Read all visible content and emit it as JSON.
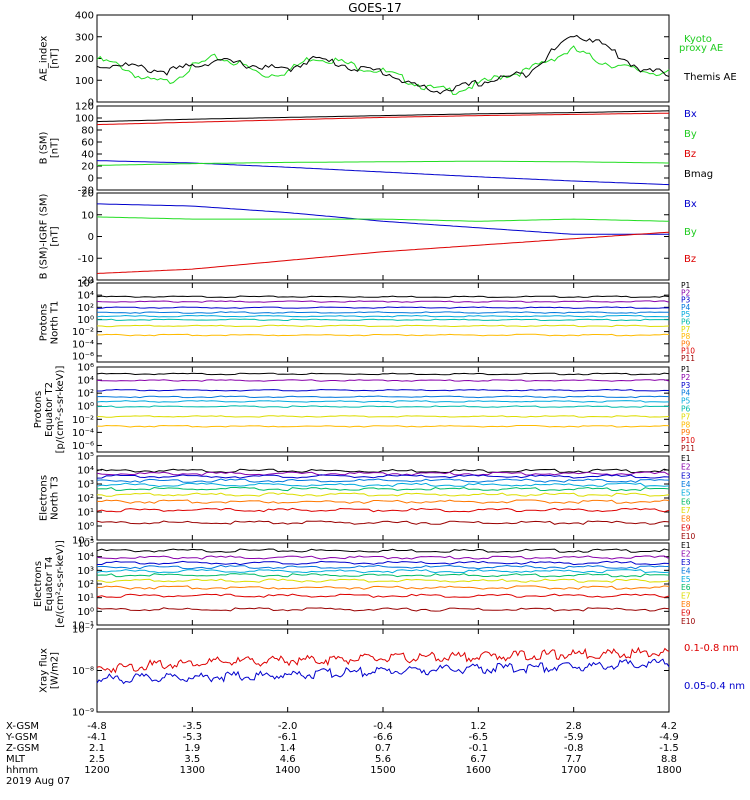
{
  "title": "GOES-17",
  "chart_data": [
    {
      "type": "line",
      "ylabel": [
        "AE_index",
        "[nT]"
      ],
      "ylim": [
        0,
        400
      ],
      "ticks": [
        "0",
        "100",
        "200",
        "300",
        "400"
      ],
      "legend": [
        {
          "label": "Kyoto",
          "color": "#22cc22"
        },
        {
          "label": "proxy AE",
          "color": "#22cc22"
        },
        {
          "label": "Themis AE",
          "color": "#000000"
        }
      ],
      "series": [
        {
          "name": "Kyoto proxy AE",
          "color": "#22dd22",
          "x": [
            0,
            15,
            30,
            45,
            60,
            75,
            90,
            105,
            120,
            135,
            150,
            165,
            180,
            195,
            210,
            225,
            240,
            255,
            270,
            285,
            300,
            315,
            330,
            345,
            360
          ],
          "values": [
            205,
            175,
            110,
            100,
            170,
            215,
            185,
            130,
            150,
            215,
            200,
            170,
            150,
            110,
            70,
            60,
            90,
            130,
            150,
            205,
            250,
            200,
            170,
            150,
            140
          ]
        },
        {
          "name": "Themis AE",
          "color": "#000000",
          "x": [
            0,
            15,
            30,
            45,
            60,
            75,
            90,
            105,
            120,
            135,
            150,
            165,
            180,
            195,
            210,
            225,
            240,
            255,
            270,
            285,
            300,
            315,
            330,
            345,
            360
          ],
          "values": [
            170,
            185,
            160,
            150,
            175,
            200,
            185,
            170,
            155,
            210,
            190,
            160,
            150,
            100,
            60,
            70,
            95,
            120,
            140,
            230,
            320,
            290,
            215,
            150,
            140
          ]
        }
      ]
    },
    {
      "type": "line",
      "ylabel": [
        "B (SM)",
        "[nT]"
      ],
      "ylim": [
        -20,
        120
      ],
      "ticks": [
        "-20",
        "0",
        "20",
        "40",
        "60",
        "80",
        "100",
        "120"
      ],
      "legend": [
        {
          "label": "Bx",
          "color": "#0000cc"
        },
        {
          "label": "By",
          "color": "#22cc22"
        },
        {
          "label": "Bz",
          "color": "#dd0000"
        },
        {
          "label": "Bmag",
          "color": "#000000"
        }
      ],
      "series": [
        {
          "name": "Bx",
          "color": "#0000cc",
          "x": [
            0,
            60,
            120,
            180,
            240,
            300,
            360
          ],
          "values": [
            29,
            25,
            18,
            10,
            2,
            -5,
            -11
          ]
        },
        {
          "name": "By",
          "color": "#22dd22",
          "x": [
            0,
            60,
            120,
            180,
            240,
            300,
            360
          ],
          "values": [
            21,
            24,
            26,
            27,
            28,
            27,
            25
          ]
        },
        {
          "name": "Bz",
          "color": "#dd0000",
          "x": [
            0,
            60,
            120,
            180,
            240,
            300,
            360
          ],
          "values": [
            89,
            93,
            97,
            101,
            104,
            106,
            108
          ]
        },
        {
          "name": "Bmag",
          "color": "#000000",
          "x": [
            0,
            60,
            120,
            180,
            240,
            300,
            360
          ],
          "values": [
            94,
            98,
            101,
            104,
            107,
            109,
            112
          ]
        }
      ]
    },
    {
      "type": "line",
      "ylabel": [
        "B (SM)-IGRF (SM)",
        "[nT]"
      ],
      "ylim": [
        -20,
        20
      ],
      "ticks": [
        "-20",
        "-10",
        "0",
        "10",
        "20"
      ],
      "legend": [
        {
          "label": "Bx",
          "color": "#0000cc"
        },
        {
          "label": "By",
          "color": "#22cc22"
        },
        {
          "label": "Bz",
          "color": "#dd0000"
        }
      ],
      "series": [
        {
          "name": "Bx",
          "color": "#0000cc",
          "x": [
            0,
            60,
            120,
            180,
            240,
            300,
            360
          ],
          "values": [
            15,
            14,
            11,
            7,
            4,
            1,
            1
          ]
        },
        {
          "name": "By",
          "color": "#22dd22",
          "x": [
            0,
            60,
            120,
            180,
            240,
            300,
            360
          ],
          "values": [
            9,
            8,
            8,
            8,
            7,
            8,
            7
          ]
        },
        {
          "name": "Bz",
          "color": "#dd0000",
          "x": [
            0,
            60,
            120,
            180,
            240,
            300,
            360
          ],
          "values": [
            -17,
            -15,
            -11,
            -7,
            -4,
            -1,
            2
          ]
        }
      ]
    },
    {
      "type": "line",
      "ylog": true,
      "ylabel": [
        "Protons",
        "North T1"
      ],
      "ylim_exp": [
        -7,
        6
      ],
      "ticks": [
        "10⁶",
        "10⁴",
        "10²",
        "10⁰",
        "10⁻²",
        "10⁻⁴",
        "10⁻⁶"
      ],
      "tick_exp": [
        6,
        4,
        2,
        0,
        -2,
        -4,
        -6
      ],
      "legend": [
        {
          "label": "P1",
          "color": "#000000"
        },
        {
          "label": "P2",
          "color": "#8800aa"
        },
        {
          "label": "P3",
          "color": "#0000cc"
        },
        {
          "label": "P4",
          "color": "#0077dd"
        },
        {
          "label": "P5",
          "color": "#00aadd"
        },
        {
          "label": "P6",
          "color": "#00bbaa"
        },
        {
          "label": "P7",
          "color": "#dddd00"
        },
        {
          "label": "P8",
          "color": "#ffbb00"
        },
        {
          "label": "P9",
          "color": "#ff7700"
        },
        {
          "label": "P10",
          "color": "#dd0000"
        },
        {
          "label": "P11",
          "color": "#990000"
        }
      ],
      "series": [
        {
          "name": "P1",
          "color": "#000000",
          "level_exp": 3.8
        },
        {
          "name": "P2",
          "color": "#8800aa",
          "level_exp": 3.0
        },
        {
          "name": "P3",
          "color": "#0000cc",
          "level_exp": 2.0
        },
        {
          "name": "P4",
          "color": "#0077dd",
          "level_exp": 1.2
        },
        {
          "name": "P5",
          "color": "#00aadd",
          "level_exp": 0.6
        },
        {
          "name": "P6",
          "color": "#00bbaa",
          "level_exp": 0.0
        },
        {
          "name": "P7",
          "color": "#dddd00",
          "level_exp": -1.0
        },
        {
          "name": "P8",
          "color": "#ffbb00",
          "level_exp": -2.5
        }
      ]
    },
    {
      "type": "line",
      "ylog": true,
      "ylabel": [
        "Protons",
        "Equator T2",
        "[p/(cm²-s-sr-keV)]"
      ],
      "ylim_exp": [
        -7,
        6
      ],
      "ticks": [
        "10⁶",
        "10⁴",
        "10²",
        "10⁰",
        "10⁻²",
        "10⁻⁴",
        "10⁻⁶"
      ],
      "tick_exp": [
        6,
        4,
        2,
        0,
        -2,
        -4,
        -6
      ],
      "legend": [
        {
          "label": "P1",
          "color": "#000000"
        },
        {
          "label": "P2",
          "color": "#8800aa"
        },
        {
          "label": "P3",
          "color": "#0000cc"
        },
        {
          "label": "P4",
          "color": "#0077dd"
        },
        {
          "label": "P5",
          "color": "#00aadd"
        },
        {
          "label": "P6",
          "color": "#00bbaa"
        },
        {
          "label": "P7",
          "color": "#dddd00"
        },
        {
          "label": "P8",
          "color": "#ffbb00"
        },
        {
          "label": "P9",
          "color": "#ff7700"
        },
        {
          "label": "P10",
          "color": "#dd0000"
        },
        {
          "label": "P11",
          "color": "#990000"
        }
      ],
      "series": [
        {
          "name": "P1",
          "color": "#000000",
          "level_exp": 5.0
        },
        {
          "name": "P2",
          "color": "#8800aa",
          "level_exp": 4.0
        },
        {
          "name": "P3",
          "color": "#0000cc",
          "level_exp": 2.5
        },
        {
          "name": "P4",
          "color": "#0077dd",
          "level_exp": 1.5
        },
        {
          "name": "P5",
          "color": "#00aadd",
          "level_exp": 0.8
        },
        {
          "name": "P6",
          "color": "#00bbaa",
          "level_exp": 0.0
        },
        {
          "name": "P7",
          "color": "#dddd00",
          "level_exp": -1.5
        },
        {
          "name": "P8",
          "color": "#ffbb00",
          "level_exp": -3.0
        }
      ]
    },
    {
      "type": "line",
      "ylog": true,
      "ylabel": [
        "Electrons",
        "North T3"
      ],
      "ylim_exp": [
        -1,
        5
      ],
      "ticks": [
        "10⁵",
        "10⁴",
        "10³",
        "10²",
        "10¹",
        "10⁰",
        "10⁻¹"
      ],
      "tick_exp": [
        5,
        4,
        3,
        2,
        1,
        0,
        -1
      ],
      "legend": [
        {
          "label": "E1",
          "color": "#000000"
        },
        {
          "label": "E2",
          "color": "#8800aa"
        },
        {
          "label": "E3",
          "color": "#0000cc"
        },
        {
          "label": "E4",
          "color": "#0077dd"
        },
        {
          "label": "E5",
          "color": "#00aadd"
        },
        {
          "label": "E6",
          "color": "#00bb66"
        },
        {
          "label": "E7",
          "color": "#dddd00"
        },
        {
          "label": "E8",
          "color": "#ff7700"
        },
        {
          "label": "E9",
          "color": "#dd0000"
        },
        {
          "label": "E10",
          "color": "#990000"
        }
      ],
      "series": [
        {
          "name": "E1",
          "color": "#000000",
          "level_exp": 4.0
        },
        {
          "name": "E2",
          "color": "#8800aa",
          "level_exp": 3.8
        },
        {
          "name": "E3",
          "color": "#0000cc",
          "level_exp": 3.6
        },
        {
          "name": "E4",
          "color": "#0077dd",
          "level_exp": 3.3
        },
        {
          "name": "E5",
          "color": "#00aadd",
          "level_exp": 3.0
        },
        {
          "name": "E6",
          "color": "#00bb66",
          "level_exp": 2.7
        },
        {
          "name": "E7",
          "color": "#dddd00",
          "level_exp": 2.3
        },
        {
          "name": "E8",
          "color": "#ff7700",
          "level_exp": 1.8
        },
        {
          "name": "E9",
          "color": "#dd0000",
          "level_exp": 1.2
        },
        {
          "name": "E10",
          "color": "#990000",
          "level_exp": 0.3
        }
      ]
    },
    {
      "type": "line",
      "ylog": true,
      "ylabel": [
        "Electrons",
        "Equator T4",
        "[e/(cm²-s-sr-keV)]"
      ],
      "ylim_exp": [
        -1,
        5
      ],
      "ticks": [
        "10⁵",
        "10⁴",
        "10³",
        "10²",
        "10¹",
        "10⁰",
        "10⁻¹"
      ],
      "tick_exp": [
        5,
        4,
        3,
        2,
        1,
        0,
        -1
      ],
      "legend": [
        {
          "label": "E1",
          "color": "#000000"
        },
        {
          "label": "E2",
          "color": "#8800aa"
        },
        {
          "label": "E3",
          "color": "#0000cc"
        },
        {
          "label": "E4",
          "color": "#0077dd"
        },
        {
          "label": "E5",
          "color": "#00aadd"
        },
        {
          "label": "E6",
          "color": "#00bb66"
        },
        {
          "label": "E7",
          "color": "#dddd00"
        },
        {
          "label": "E8",
          "color": "#ff7700"
        },
        {
          "label": "E9",
          "color": "#dd0000"
        },
        {
          "label": "E10",
          "color": "#990000"
        }
      ],
      "series": [
        {
          "name": "E1",
          "color": "#000000",
          "level_exp": 4.5
        },
        {
          "name": "E2",
          "color": "#8800aa",
          "level_exp": 4.0
        },
        {
          "name": "E3",
          "color": "#0000cc",
          "level_exp": 3.6
        },
        {
          "name": "E4",
          "color": "#0077dd",
          "level_exp": 3.3
        },
        {
          "name": "E5",
          "color": "#00aadd",
          "level_exp": 3.0
        },
        {
          "name": "E6",
          "color": "#00bb66",
          "level_exp": 2.7
        },
        {
          "name": "E7",
          "color": "#dddd00",
          "level_exp": 2.3
        },
        {
          "name": "E8",
          "color": "#ff7700",
          "level_exp": 1.8
        },
        {
          "name": "E9",
          "color": "#dd0000",
          "level_exp": 1.2
        },
        {
          "name": "E10",
          "color": "#990000",
          "level_exp": 0.2
        }
      ]
    },
    {
      "type": "line",
      "ylog": true,
      "ylabel": [
        "Xray flux",
        "[W/m2]"
      ],
      "ylim_exp": [
        -9,
        -7
      ],
      "ticks": [
        "10⁻⁷",
        "10⁻⁸",
        "10⁻⁹"
      ],
      "tick_exp": [
        -7,
        -8,
        -9
      ],
      "legend": [
        {
          "label": "0.1-0.8 nm",
          "color": "#dd0000"
        },
        {
          "label": "0.05-0.4 nm",
          "color": "#0000cc"
        }
      ],
      "series": [
        {
          "name": "0.1-0.8 nm",
          "color": "#dd0000",
          "x": [
            0,
            60,
            120,
            180,
            240,
            300,
            360
          ],
          "values_exp": [
            -7.9,
            -7.75,
            -7.7,
            -7.65,
            -7.6,
            -7.55,
            -7.5
          ]
        },
        {
          "name": "0.05-0.4 nm",
          "color": "#0000cc",
          "x": [
            0,
            60,
            120,
            180,
            240,
            300,
            360
          ],
          "values_exp": [
            -8.15,
            -8.1,
            -8.05,
            -7.95,
            -7.9,
            -7.85,
            -7.75
          ]
        }
      ]
    }
  ],
  "xaxis": {
    "rows": [
      {
        "label": "X-GSM",
        "values": [
          "-4.8",
          "-3.5",
          "-2.0",
          "-0.4",
          "1.2",
          "2.8",
          "4.2"
        ]
      },
      {
        "label": "Y-GSM",
        "values": [
          "-4.1",
          "-5.3",
          "-6.1",
          "-6.6",
          "-6.5",
          "-5.9",
          "-4.9"
        ]
      },
      {
        "label": "Z-GSM",
        "values": [
          "2.1",
          "1.9",
          "1.4",
          "0.7",
          "-0.1",
          "-0.8",
          "-1.5"
        ]
      },
      {
        "label": "MLT",
        "values": [
          "2.5",
          "3.5",
          "4.6",
          "5.6",
          "6.7",
          "7.7",
          "8.8"
        ]
      },
      {
        "label": "hhmm",
        "values": [
          "1200",
          "1300",
          "1400",
          "1500",
          "1600",
          "1700",
          "1800"
        ]
      }
    ],
    "date": "2019 Aug 07"
  }
}
